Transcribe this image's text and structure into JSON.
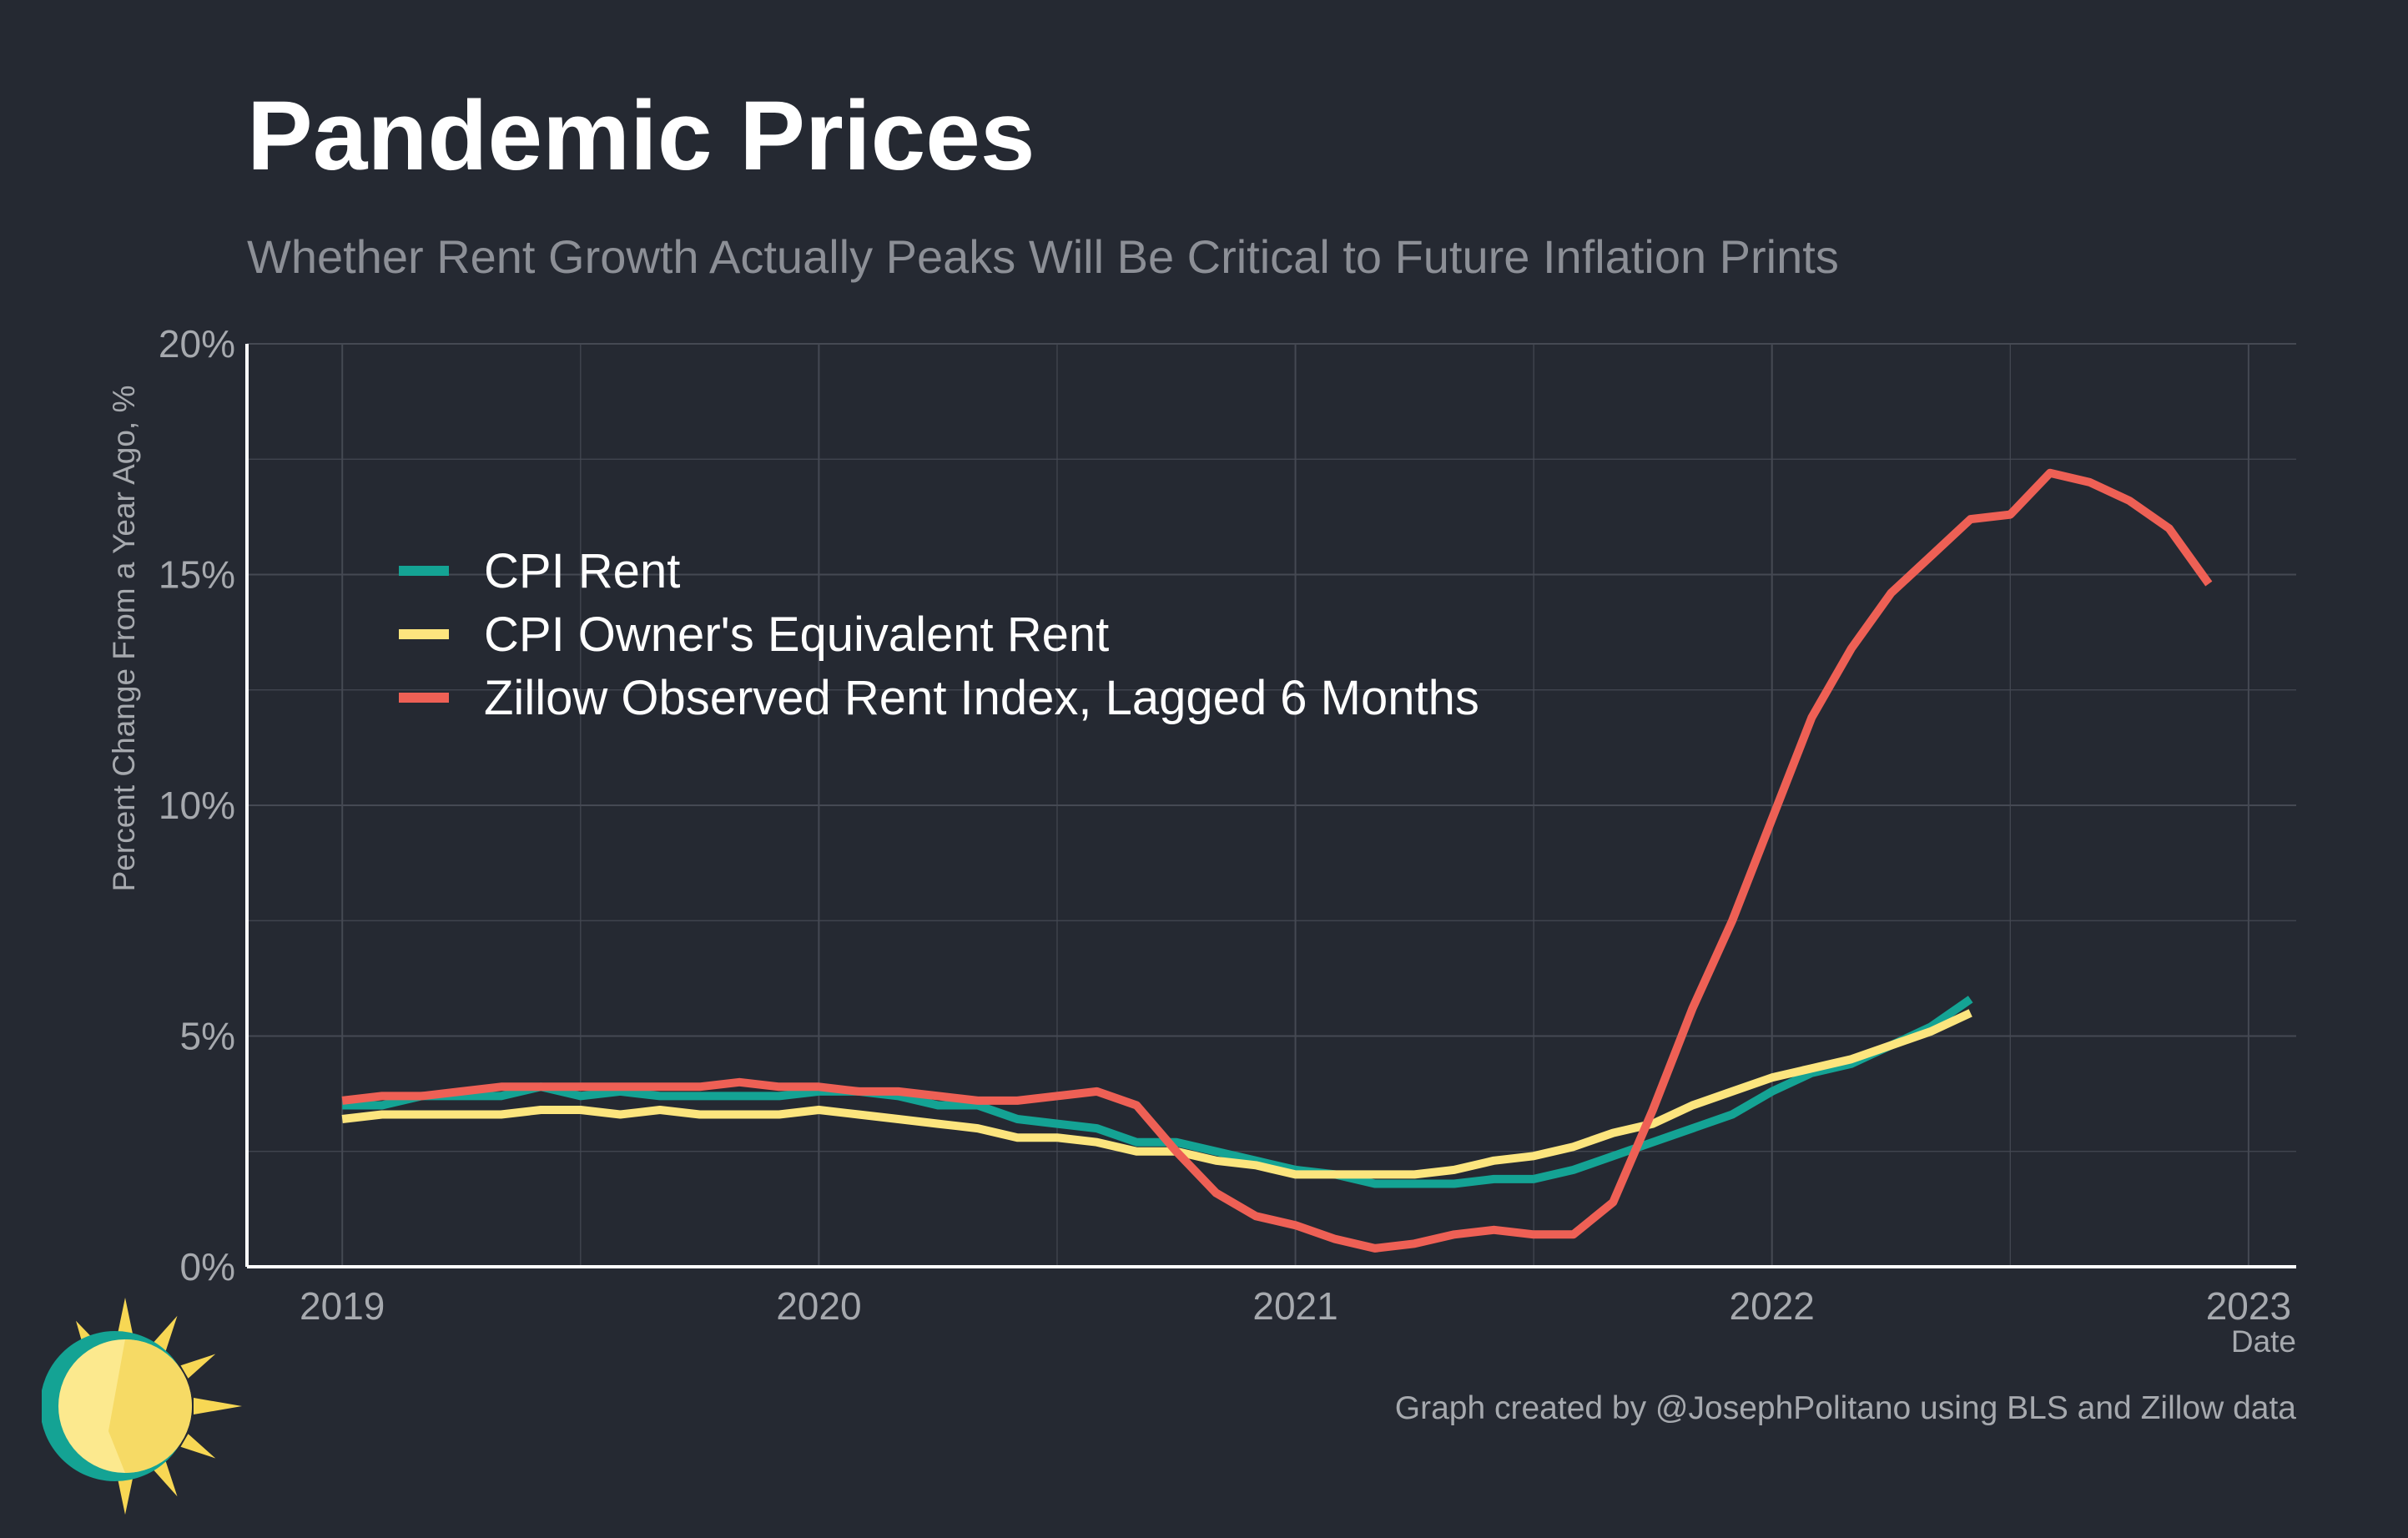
{
  "header": {
    "title": "Pandemic Prices",
    "subtitle": "Whether Rent Growth Actually Peaks Will Be Critical to Future Inflation Prints"
  },
  "caption": "Graph created by @JosephPolitano using BLS and Zillow data",
  "logo": {
    "icon": "sun-icon"
  },
  "colors": {
    "background": "#252932",
    "grid": "#454953",
    "axis": "#ffffff",
    "tick_text": "#a6a9ae"
  },
  "chart_data": {
    "type": "line",
    "xlabel": "Date",
    "ylabel": "Percent Change From a Year Ago, %",
    "xlim": [
      2018.8,
      2023.1
    ],
    "ylim": [
      0,
      20
    ],
    "x_ticks": [
      2019,
      2020,
      2021,
      2022,
      2023
    ],
    "x_tick_labels": [
      "2019",
      "2020",
      "2021",
      "2022",
      "2023"
    ],
    "y_ticks": [
      0,
      5,
      10,
      15,
      20
    ],
    "y_tick_labels": [
      "0%",
      "5%",
      "10%",
      "15%",
      "20%"
    ],
    "grid": true,
    "legend_position": "upper-left inside plot",
    "x_dates": [
      "2019-01",
      "2019-02",
      "2019-03",
      "2019-04",
      "2019-05",
      "2019-06",
      "2019-07",
      "2019-08",
      "2019-09",
      "2019-10",
      "2019-11",
      "2019-12",
      "2020-01",
      "2020-02",
      "2020-03",
      "2020-04",
      "2020-05",
      "2020-06",
      "2020-07",
      "2020-08",
      "2020-09",
      "2020-10",
      "2020-11",
      "2020-12",
      "2021-01",
      "2021-02",
      "2021-03",
      "2021-04",
      "2021-05",
      "2021-06",
      "2021-07",
      "2021-08",
      "2021-09",
      "2021-10",
      "2021-11",
      "2021-12",
      "2022-01",
      "2022-02",
      "2022-03",
      "2022-04",
      "2022-05",
      "2022-06",
      "2022-07",
      "2022-08",
      "2022-09",
      "2022-10",
      "2022-11",
      "2022-12"
    ],
    "series": [
      {
        "name": "CPI Rent",
        "color": "#14a394",
        "values": [
          3.5,
          3.5,
          3.7,
          3.7,
          3.7,
          3.9,
          3.7,
          3.8,
          3.7,
          3.7,
          3.7,
          3.7,
          3.8,
          3.8,
          3.7,
          3.5,
          3.5,
          3.2,
          3.1,
          3.0,
          2.7,
          2.7,
          2.5,
          2.3,
          2.1,
          2.0,
          1.8,
          1.8,
          1.8,
          1.9,
          1.9,
          2.1,
          2.4,
          2.7,
          3.0,
          3.3,
          3.8,
          4.2,
          4.4,
          4.8,
          5.2,
          5.8
        ]
      },
      {
        "name": "CPI Owner's Equivalent Rent",
        "color": "#fce57e",
        "values": [
          3.2,
          3.3,
          3.3,
          3.3,
          3.3,
          3.4,
          3.4,
          3.3,
          3.4,
          3.3,
          3.3,
          3.3,
          3.4,
          3.3,
          3.2,
          3.1,
          3.0,
          2.8,
          2.8,
          2.7,
          2.5,
          2.5,
          2.3,
          2.2,
          2.0,
          2.0,
          2.0,
          2.0,
          2.1,
          2.3,
          2.4,
          2.6,
          2.9,
          3.1,
          3.5,
          3.8,
          4.1,
          4.3,
          4.5,
          4.8,
          5.1,
          5.5
        ]
      },
      {
        "name": "Zillow Observed Rent Index, Lagged 6 Months",
        "color": "#ee6055",
        "values": [
          3.6,
          3.7,
          3.7,
          3.8,
          3.9,
          3.9,
          3.9,
          3.9,
          3.9,
          3.9,
          4.0,
          3.9,
          3.9,
          3.8,
          3.8,
          3.7,
          3.6,
          3.6,
          3.7,
          3.8,
          3.5,
          2.5,
          1.6,
          1.1,
          0.9,
          0.6,
          0.4,
          0.5,
          0.7,
          0.8,
          0.7,
          0.7,
          1.4,
          3.4,
          5.6,
          7.5,
          9.7,
          11.9,
          13.4,
          14.6,
          15.4,
          16.2,
          16.3,
          17.2,
          17.0,
          16.6,
          16.0,
          14.8
        ]
      }
    ]
  }
}
